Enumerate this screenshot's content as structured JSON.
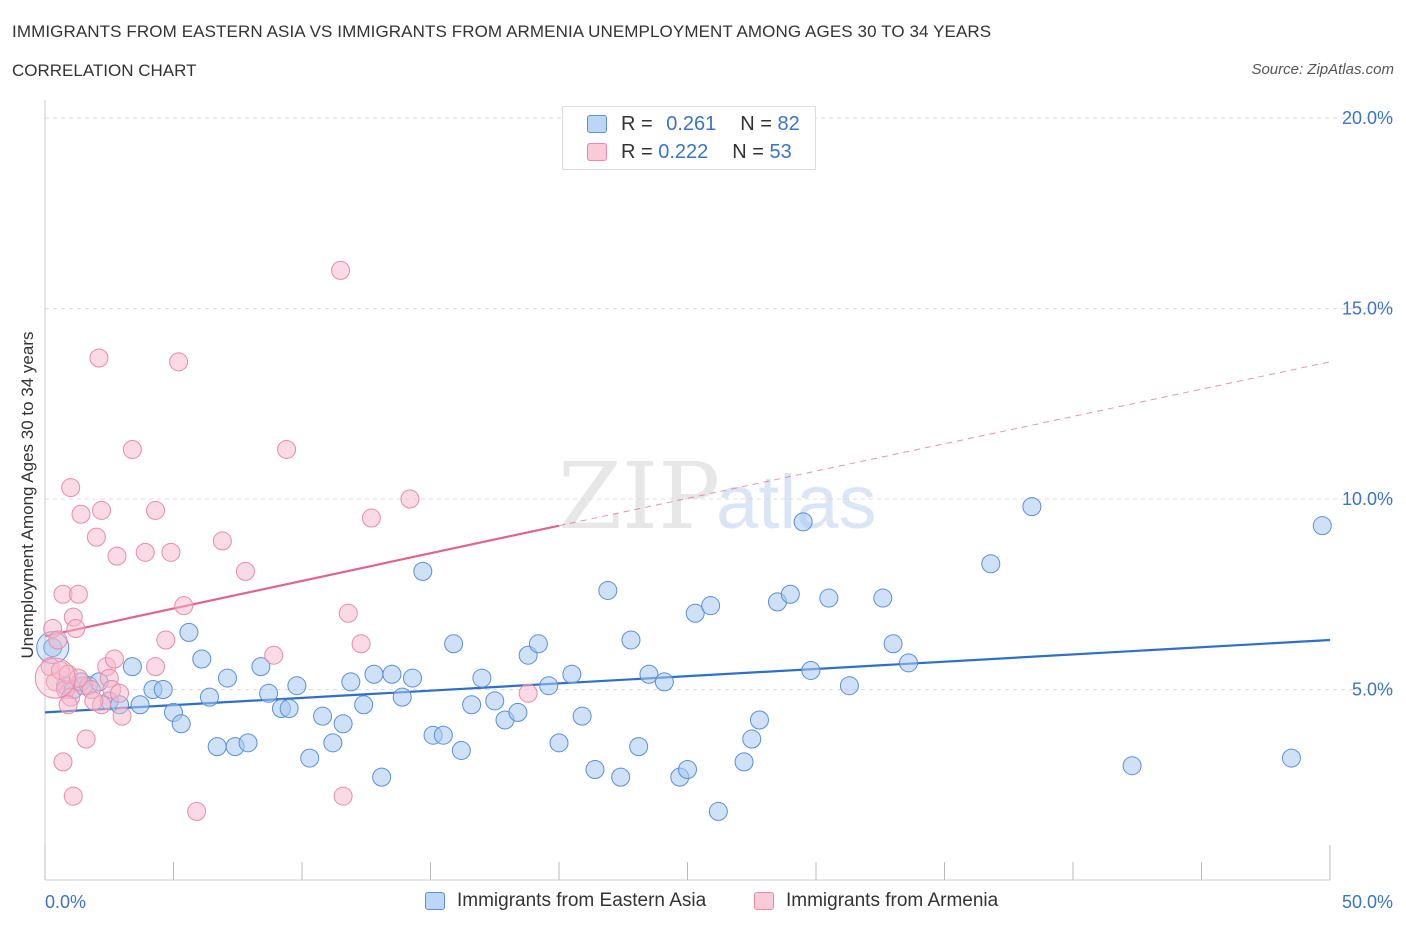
{
  "title": "IMMIGRANTS FROM EASTERN ASIA VS IMMIGRANTS FROM ARMENIA UNEMPLOYMENT AMONG AGES 30 TO 34 YEARS",
  "subtitle": "CORRELATION CHART",
  "source": "Source: ZipAtlas.com",
  "watermark": {
    "zip": "ZIP",
    "atlas": "atlas"
  },
  "colors": {
    "blue_fill": "#a8c8f0",
    "blue_stroke": "#5b8fd6",
    "blue_line": "#2f6fcc",
    "pink_fill": "#f6b8cb",
    "pink_stroke": "#e98aa8",
    "pink_line": "#e0648e",
    "axis_text": "#3a74c8",
    "grid": "#dddddd"
  },
  "legend_top": [
    {
      "r_label": "R =",
      "r_value": "0.261",
      "n_label": "N =",
      "n_value": "82"
    },
    {
      "r_label": "R =",
      "r_value": "0.222",
      "n_label": "N =",
      "n_value": "53"
    }
  ],
  "legend_bottom": [
    "Immigrants from Eastern Asia",
    "Immigrants from Armenia"
  ],
  "chart_data": {
    "type": "scatter",
    "title": "IMMIGRANTS FROM EASTERN ASIA VS IMMIGRANTS FROM ARMENIA UNEMPLOYMENT AMONG AGES 30 TO 34 YEARS",
    "xlabel": "",
    "ylabel": "Unemployment Among Ages 30 to 34 years",
    "xlim": [
      0,
      50
    ],
    "ylim": [
      0,
      20.5
    ],
    "x_tick_labels": [
      "0.0%",
      "50.0%"
    ],
    "y_ticks": [
      5,
      10,
      15,
      20
    ],
    "y_tick_labels": [
      "5.0%",
      "10.0%",
      "15.0%",
      "20.0%"
    ],
    "grid": true,
    "series": [
      {
        "name": "Immigrants from Eastern Asia",
        "color": "blue",
        "points": [
          [
            0.3,
            6.1
          ],
          [
            0.8,
            5.1
          ],
          [
            1.1,
            5.0
          ],
          [
            1.4,
            5.2
          ],
          [
            1.7,
            5.1
          ],
          [
            2.1,
            5.2
          ],
          [
            2.5,
            4.7
          ],
          [
            2.9,
            4.6
          ],
          [
            3.4,
            5.6
          ],
          [
            3.7,
            4.6
          ],
          [
            4.2,
            5.0
          ],
          [
            4.6,
            5.0
          ],
          [
            5.0,
            4.4
          ],
          [
            5.3,
            4.1
          ],
          [
            5.6,
            6.5
          ],
          [
            6.1,
            5.8
          ],
          [
            6.4,
            4.8
          ],
          [
            6.7,
            3.5
          ],
          [
            7.1,
            5.3
          ],
          [
            7.4,
            3.5
          ],
          [
            7.9,
            3.6
          ],
          [
            8.4,
            5.6
          ],
          [
            8.7,
            4.9
          ],
          [
            9.2,
            4.5
          ],
          [
            9.5,
            4.5
          ],
          [
            9.8,
            5.1
          ],
          [
            10.3,
            3.2
          ],
          [
            10.8,
            4.3
          ],
          [
            11.2,
            3.6
          ],
          [
            11.6,
            4.1
          ],
          [
            11.9,
            5.2
          ],
          [
            12.4,
            4.6
          ],
          [
            12.8,
            5.4
          ],
          [
            13.1,
            2.7
          ],
          [
            13.5,
            5.4
          ],
          [
            13.9,
            4.8
          ],
          [
            14.3,
            5.3
          ],
          [
            14.7,
            8.1
          ],
          [
            15.1,
            3.8
          ],
          [
            15.5,
            3.8
          ],
          [
            15.9,
            6.2
          ],
          [
            16.2,
            3.4
          ],
          [
            16.6,
            4.6
          ],
          [
            17.0,
            5.3
          ],
          [
            17.5,
            4.7
          ],
          [
            17.9,
            4.2
          ],
          [
            18.4,
            4.4
          ],
          [
            18.8,
            5.9
          ],
          [
            19.2,
            6.2
          ],
          [
            19.6,
            5.1
          ],
          [
            20.0,
            3.6
          ],
          [
            20.5,
            5.4
          ],
          [
            20.9,
            4.3
          ],
          [
            21.4,
            2.9
          ],
          [
            21.9,
            7.6
          ],
          [
            22.4,
            2.7
          ],
          [
            22.8,
            6.3
          ],
          [
            23.1,
            3.5
          ],
          [
            23.5,
            5.4
          ],
          [
            24.1,
            5.2
          ],
          [
            24.7,
            2.7
          ],
          [
            25.0,
            2.9
          ],
          [
            25.3,
            7.0
          ],
          [
            25.9,
            7.2
          ],
          [
            26.2,
            1.8
          ],
          [
            27.2,
            3.1
          ],
          [
            27.5,
            3.7
          ],
          [
            27.8,
            4.2
          ],
          [
            28.5,
            7.3
          ],
          [
            29.0,
            7.5
          ],
          [
            29.5,
            9.4
          ],
          [
            29.8,
            5.5
          ],
          [
            30.5,
            7.4
          ],
          [
            31.3,
            5.1
          ],
          [
            32.6,
            7.4
          ],
          [
            33.0,
            6.2
          ],
          [
            33.6,
            5.7
          ],
          [
            36.8,
            8.3
          ],
          [
            38.4,
            9.8
          ],
          [
            42.3,
            3.0
          ],
          [
            48.5,
            3.2
          ],
          [
            49.7,
            9.3
          ]
        ],
        "trend": {
          "x0": 0,
          "y0": 4.4,
          "x1": 50,
          "y1": 6.3
        }
      },
      {
        "name": "Immigrants from Armenia",
        "color": "pink",
        "points": [
          [
            0.2,
            5.6
          ],
          [
            0.3,
            6.6
          ],
          [
            0.4,
            5.2
          ],
          [
            0.5,
            6.3
          ],
          [
            0.6,
            5.5
          ],
          [
            0.7,
            3.1
          ],
          [
            0.7,
            7.5
          ],
          [
            0.8,
            5.0
          ],
          [
            0.9,
            5.4
          ],
          [
            1.0,
            4.8
          ],
          [
            1.0,
            10.3
          ],
          [
            1.1,
            2.2
          ],
          [
            1.1,
            6.9
          ],
          [
            1.2,
            6.6
          ],
          [
            1.3,
            7.5
          ],
          [
            1.4,
            9.6
          ],
          [
            1.5,
            5.1
          ],
          [
            1.6,
            3.7
          ],
          [
            1.8,
            5.0
          ],
          [
            2.0,
            9.0
          ],
          [
            2.2,
            4.6
          ],
          [
            2.2,
            9.7
          ],
          [
            2.1,
            13.7
          ],
          [
            2.4,
            5.6
          ],
          [
            2.5,
            5.3
          ],
          [
            2.6,
            5.0
          ],
          [
            2.7,
            5.8
          ],
          [
            2.8,
            8.5
          ],
          [
            2.9,
            4.9
          ],
          [
            3.0,
            4.3
          ],
          [
            3.4,
            11.3
          ],
          [
            3.9,
            8.6
          ],
          [
            4.3,
            9.7
          ],
          [
            4.3,
            5.6
          ],
          [
            4.7,
            6.3
          ],
          [
            4.9,
            8.6
          ],
          [
            5.2,
            13.6
          ],
          [
            5.4,
            7.2
          ],
          [
            5.9,
            1.8
          ],
          [
            6.9,
            8.9
          ],
          [
            7.8,
            8.1
          ],
          [
            8.9,
            5.9
          ],
          [
            9.4,
            11.3
          ],
          [
            11.5,
            16.0
          ],
          [
            11.6,
            2.2
          ],
          [
            11.8,
            7.0
          ],
          [
            12.3,
            6.2
          ],
          [
            12.7,
            9.5
          ],
          [
            14.2,
            10.0
          ],
          [
            18.8,
            4.9
          ],
          [
            1.9,
            4.7
          ],
          [
            1.3,
            5.3
          ],
          [
            0.9,
            4.6
          ]
        ],
        "trend": {
          "x0": 0,
          "y0": 6.4,
          "x1": 20,
          "y1": 9.3
        },
        "trend_dashed": {
          "x0": 20,
          "y0": 9.3,
          "x1": 50,
          "y1": 13.6
        }
      }
    ]
  }
}
